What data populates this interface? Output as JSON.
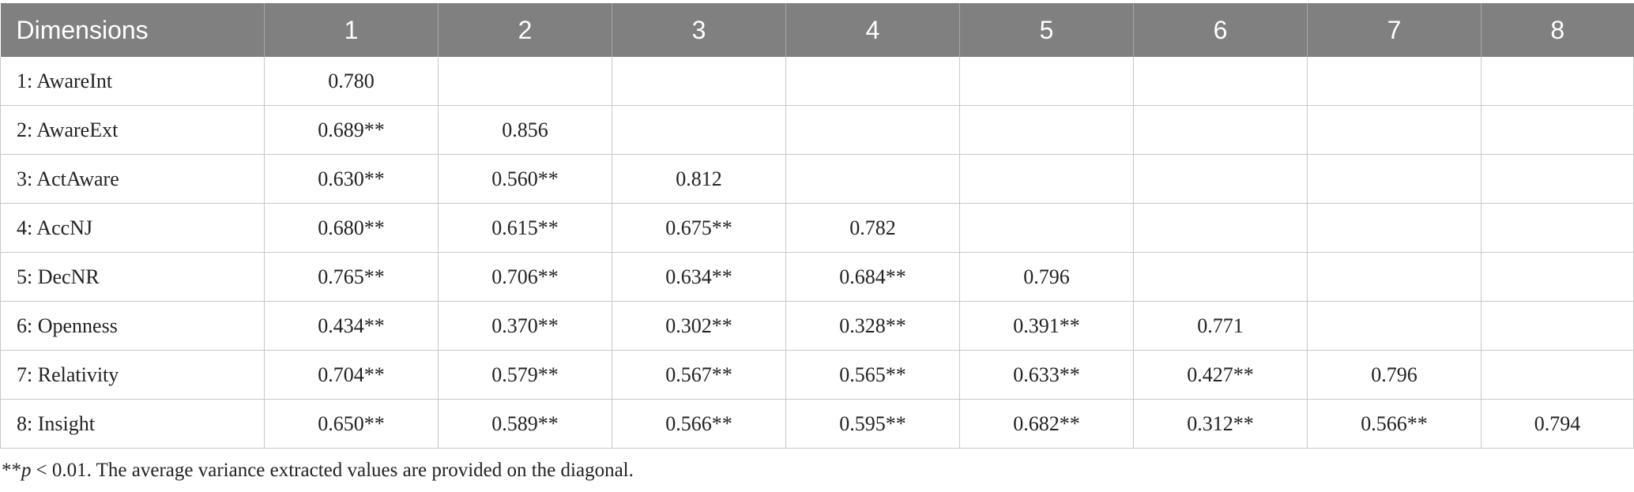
{
  "table": {
    "header": [
      "Dimensions",
      "1",
      "2",
      "3",
      "4",
      "5",
      "6",
      "7",
      "8"
    ],
    "rows": [
      {
        "label": "1: AwareInt",
        "cells": [
          "0.780"
        ]
      },
      {
        "label": "2: AwareExt",
        "cells": [
          "0.689**",
          "0.856"
        ]
      },
      {
        "label": "3: ActAware",
        "cells": [
          "0.630**",
          "0.560**",
          "0.812"
        ]
      },
      {
        "label": "4: AccNJ",
        "cells": [
          "0.680**",
          "0.615**",
          "0.675**",
          "0.782"
        ]
      },
      {
        "label": "5: DecNR",
        "cells": [
          "0.765**",
          "0.706**",
          "0.634**",
          "0.684**",
          "0.796"
        ]
      },
      {
        "label": "6: Openness",
        "cells": [
          "0.434**",
          "0.370**",
          "0.302**",
          "0.328**",
          "0.391**",
          "0.771"
        ]
      },
      {
        "label": "7: Relativity",
        "cells": [
          "0.704**",
          "0.579**",
          "0.567**",
          "0.565**",
          "0.633**",
          "0.427**",
          "0.796"
        ]
      },
      {
        "label": "8: Insight",
        "cells": [
          "0.650**",
          "0.589**",
          "0.566**",
          "0.595**",
          "0.682**",
          "0.312**",
          "0.566**",
          "0.794"
        ]
      }
    ]
  },
  "footnote": {
    "marker": "**",
    "symbol": "p",
    "text": "< 0.01. The average variance extracted values are provided on the diagonal."
  }
}
